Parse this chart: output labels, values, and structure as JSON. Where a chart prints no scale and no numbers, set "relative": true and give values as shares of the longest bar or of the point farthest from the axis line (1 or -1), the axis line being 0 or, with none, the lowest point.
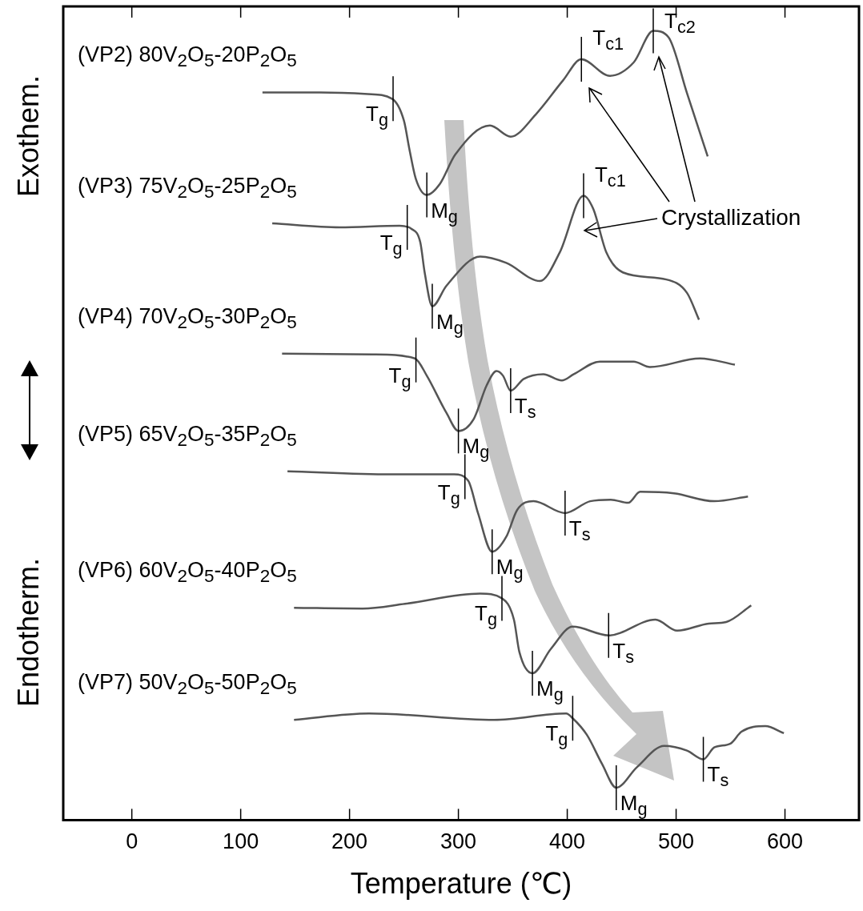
{
  "chart_data": {
    "type": "line",
    "relative": true,
    "xlabel": "Temperature (℃)",
    "xlim": [
      -63,
      668
    ],
    "xticks": [
      0,
      100,
      200,
      300,
      400,
      500,
      600
    ],
    "grid": false,
    "legend": false,
    "series": [
      {
        "name": "(VP2) 80V$_{2}$O$_{5}$-20P$_{2}$O$_{5}$",
        "color": "#555555",
        "x": [
          120,
          173,
          217,
          239,
          250,
          255,
          261,
          271,
          283,
          297,
          329,
          348,
          371,
          396,
          413,
          439,
          461,
          479,
          493,
          510,
          529
        ],
        "values": [
          0.922,
          0.922,
          0.92,
          0.914,
          0.886,
          0.85,
          0.812,
          0.792,
          0.806,
          0.843,
          0.88,
          0.866,
          0.894,
          0.937,
          0.964,
          0.943,
          0.96,
          1.0,
          0.992,
          0.921,
          0.841
        ]
      },
      {
        "name": "(VP3) 75V$_{2}$O$_{5}$-25P$_{2}$O$_{5}$",
        "color": "#555555",
        "x": [
          129,
          191,
          246,
          257,
          265,
          269,
          276,
          289,
          320,
          344,
          375,
          393,
          415,
          424,
          436,
          451,
          491,
          510,
          521
        ],
        "values": [
          0.756,
          0.751,
          0.753,
          0.749,
          0.732,
          0.694,
          0.651,
          0.677,
          0.714,
          0.706,
          0.683,
          0.719,
          0.791,
          0.774,
          0.719,
          0.694,
          0.685,
          0.668,
          0.634
        ]
      },
      {
        "name": "(VP4) 70V$_{2}$O$_{5}$-30P$_{2}$O$_{5}$",
        "color": "#555555",
        "x": [
          138,
          222,
          260,
          271,
          289,
          300,
          314,
          326,
          335,
          341,
          348,
          360,
          378,
          395,
          406,
          430,
          461,
          476,
          522,
          554
        ],
        "values": [
          0.591,
          0.59,
          0.585,
          0.563,
          0.516,
          0.493,
          0.508,
          0.551,
          0.569,
          0.563,
          0.544,
          0.559,
          0.565,
          0.557,
          0.565,
          0.581,
          0.581,
          0.574,
          0.585,
          0.577
        ]
      },
      {
        "name": "(VP5) 65V$_{2}$O$_{5}$-35P$_{2}$O$_{5}$",
        "color": "#555555",
        "x": [
          143,
          238,
          296,
          309,
          318,
          331,
          344,
          354,
          369,
          398,
          421,
          440,
          456,
          467,
          498,
          535,
          566
        ],
        "values": [
          0.442,
          0.438,
          0.438,
          0.43,
          0.389,
          0.34,
          0.359,
          0.393,
          0.404,
          0.389,
          0.404,
          0.406,
          0.402,
          0.416,
          0.414,
          0.404,
          0.41
        ]
      },
      {
        "name": "(VP6) 60V$_{2}$O$_{5}$-40P$_{2}$O$_{5}$",
        "color": "#555555",
        "x": [
          149,
          212,
          251,
          320,
          340,
          351,
          356,
          368,
          385,
          405,
          438,
          481,
          501,
          530,
          546,
          569
        ],
        "values": [
          0.269,
          0.268,
          0.274,
          0.287,
          0.281,
          0.254,
          0.213,
          0.186,
          0.217,
          0.245,
          0.234,
          0.254,
          0.24,
          0.249,
          0.251,
          0.272
        ]
      },
      {
        "name": "(VP7) 50V$_{2}$O$_{5}$-50P$_{2}$O$_{5}$",
        "color": "#555555",
        "x": [
          149,
          218,
          333,
          399,
          405,
          418,
          432,
          445,
          464,
          489,
          510,
          525,
          535,
          550,
          560,
          582,
          599
        ],
        "values": [
          0.127,
          0.135,
          0.127,
          0.135,
          0.129,
          0.108,
          0.071,
          0.041,
          0.067,
          0.094,
          0.088,
          0.077,
          0.092,
          0.097,
          0.112,
          0.119,
          0.11
        ]
      }
    ],
    "annotations": [
      "Exothem.",
      "Endotherm.",
      "Crystallization",
      {
        "text": "T$_{g}$",
        "x": 240,
        "y": 0.914
      },
      {
        "text": "M$_{g}$",
        "x": 271,
        "y": 0.792
      },
      {
        "text": "T$_{c1}$",
        "x": 413,
        "y": 0.964
      },
      {
        "text": "T$_{c2}$",
        "x": 479,
        "y": 1.0
      },
      {
        "text": "T$_{g}$",
        "x": 253,
        "y": 0.751
      },
      {
        "text": "M$_{g}$",
        "x": 276,
        "y": 0.651
      },
      {
        "text": "T$_{c1}$",
        "x": 415,
        "y": 0.791
      },
      {
        "text": "T$_{g}$",
        "x": 261,
        "y": 0.583
      },
      {
        "text": "M$_{g}$",
        "x": 300,
        "y": 0.493
      },
      {
        "text": "T$_{s}$",
        "x": 348,
        "y": 0.544
      },
      {
        "text": "T$_{g}$",
        "x": 306,
        "y": 0.435
      },
      {
        "text": "M$_{g}$",
        "x": 331,
        "y": 0.34
      },
      {
        "text": "T$_{s}$",
        "x": 398,
        "y": 0.389
      },
      {
        "text": "T$_{g}$",
        "x": 340,
        "y": 0.281
      },
      {
        "text": "M$_{g}$",
        "x": 368,
        "y": 0.186
      },
      {
        "text": "T$_{s}$",
        "x": 438,
        "y": 0.234
      },
      {
        "text": "T$_{g}$",
        "x": 405,
        "y": 0.129
      },
      {
        "text": "M$_{g}$",
        "x": 445,
        "y": 0.041
      },
      {
        "text": "T$_{s}$",
        "x": 525,
        "y": 0.077
      }
    ]
  }
}
